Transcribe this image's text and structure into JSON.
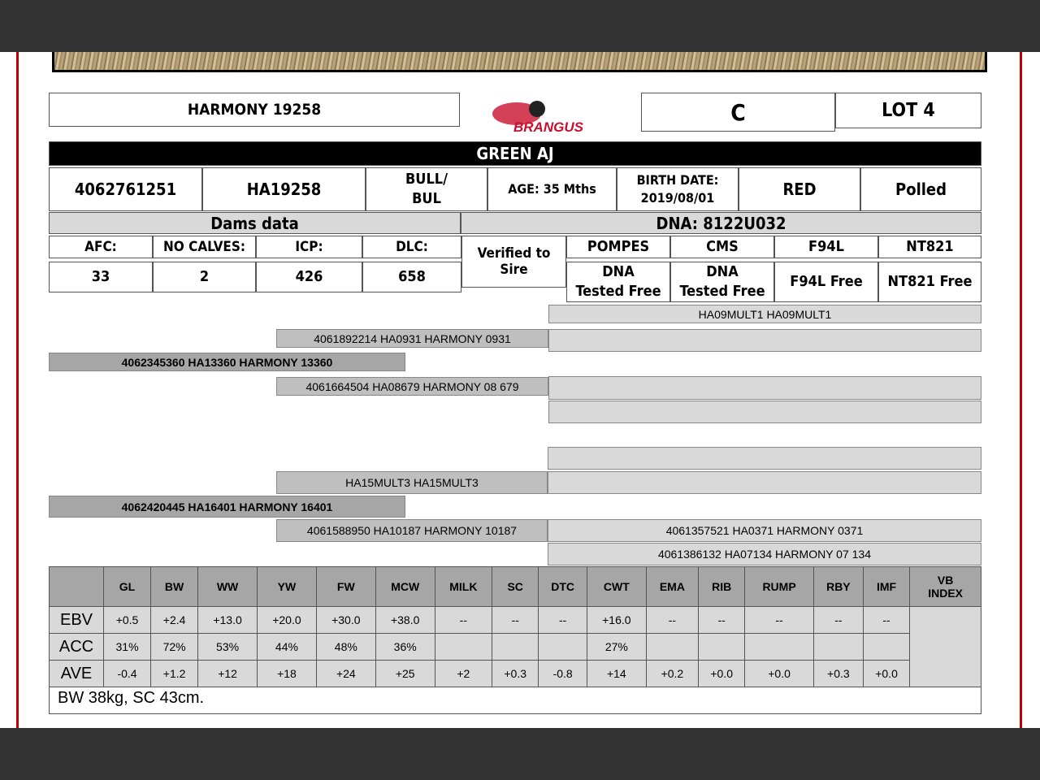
{
  "header": {
    "name": "HARMONY 19258",
    "brand": "BRANGUS",
    "grade": "C",
    "lot": "LOT 4",
    "breeder": "GREEN AJ"
  },
  "info": [
    "4062761251",
    "HA19258",
    "BULL/\nBUL",
    "AGE: 35 Mths",
    "BIRTH DATE:\n2019/08/01",
    "RED",
    "Polled"
  ],
  "dams": {
    "title": "Dams data",
    "headers": [
      "AFC:",
      "NO CALVES:",
      "ICP:",
      "DLC:"
    ],
    "values": [
      "33",
      "2",
      "426",
      "658"
    ]
  },
  "dna": {
    "title": "DNA: 8122U032",
    "verified": "Verified to\nSire",
    "headers": [
      "POMPES",
      "CMS",
      "F94L",
      "NT821"
    ],
    "values": [
      "DNA\nTested Free",
      "DNA\nTested Free",
      "F94L Free",
      "NT821 Free"
    ]
  },
  "pedigree": {
    "sire_sire_sire": "HA09MULT1 HA09MULT1",
    "sire_sire": "4061892214 HA0931 HARMONY 0931",
    "sire": "4062345360 HA13360 HARMONY 13360",
    "sire_dam": "4061664504 HA08679 HARMONY 08 679",
    "dam_sire": "HA15MULT3 HA15MULT3",
    "dam": "4062420445 HA16401 HARMONY 16401",
    "dam_dam": "4061588950 HA10187 HARMONY 10187",
    "dam_dam_sire": "4061357521 HA0371 HARMONY 0371",
    "dam_dam_dam": "4061386132 HA07134 HARMONY 07 134"
  },
  "ebv_table": {
    "headers": [
      "",
      "GL",
      "BW",
      "WW",
      "YW",
      "FW",
      "MCW",
      "MILK",
      "SC",
      "DTC",
      "CWT",
      "EMA",
      "RIB",
      "RUMP",
      "RBY",
      "IMF",
      "VB\nINDEX"
    ],
    "rows": [
      {
        "label": "EBV",
        "values": [
          "+0.5",
          "+2.4",
          "+13.0",
          "+20.0",
          "+30.0",
          "+38.0",
          "--",
          "--",
          "--",
          "+16.0",
          "--",
          "--",
          "--",
          "--",
          "--"
        ]
      },
      {
        "label": "ACC",
        "values": [
          "31%",
          "72%",
          "53%",
          "44%",
          "48%",
          "36%",
          "",
          "",
          "",
          "27%",
          "",
          "",
          "",
          "",
          ""
        ]
      },
      {
        "label": "AVE",
        "values": [
          "-0.4",
          "+1.2",
          "+12",
          "+18",
          "+24",
          "+25",
          "+2",
          "+0.3",
          "-0.8",
          "+14",
          "+0.2",
          "+0.0",
          "+0.0",
          "+0.3",
          "+0.0"
        ]
      }
    ],
    "note": "BW 38kg, SC 43cm."
  }
}
